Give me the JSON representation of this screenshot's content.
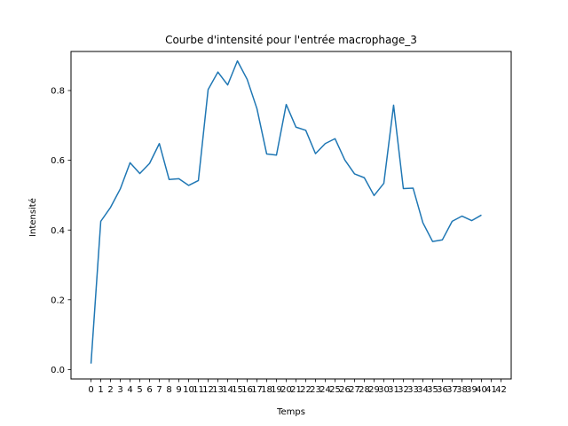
{
  "chart_data": {
    "type": "line",
    "title": "Courbe d'intensité pour l'entrée macrophage_3",
    "xlabel": "Temps",
    "ylabel": "Intensité",
    "xlim": [
      -2.05,
      43.05
    ],
    "ylim": [
      -0.027,
      0.912
    ],
    "xticks": [
      0,
      1,
      2,
      3,
      4,
      5,
      6,
      7,
      8,
      9,
      10,
      11,
      12,
      13,
      14,
      15,
      16,
      17,
      18,
      19,
      20,
      21,
      22,
      23,
      24,
      25,
      26,
      27,
      28,
      29,
      30,
      31,
      32,
      33,
      34,
      35,
      36,
      37,
      38,
      39,
      40,
      41,
      42
    ],
    "xtick_labels": [
      "0",
      "1",
      "2",
      "3",
      "4",
      "5",
      "6",
      "7",
      "8",
      "9",
      "10",
      "11",
      "12",
      "13",
      "14",
      "15",
      "16",
      "17",
      "18",
      "19",
      "20",
      "21",
      "22",
      "23",
      "24",
      "25",
      "26",
      "27",
      "28",
      "29",
      "30",
      "31",
      "32",
      "33",
      "34",
      "35",
      "36",
      "37",
      "38",
      "39",
      "40",
      "41",
      "42"
    ],
    "yticks": [
      0.0,
      0.2,
      0.4,
      0.6,
      0.8
    ],
    "ytick_labels": [
      "0.0",
      "0.2",
      "0.4",
      "0.6",
      "0.8"
    ],
    "grid": false,
    "series": [
      {
        "color": "#1f77b4",
        "x": [
          0,
          1,
          2,
          3,
          4,
          5,
          6,
          7,
          8,
          9,
          10,
          11,
          12,
          13,
          14,
          15,
          16,
          17,
          18,
          19,
          20,
          21,
          22,
          23,
          24,
          25,
          26,
          27,
          28,
          29,
          30,
          31,
          32,
          33,
          34,
          35,
          36,
          37,
          38,
          39,
          40
        ],
        "values": [
          0.017,
          0.425,
          0.465,
          0.518,
          0.593,
          0.562,
          0.591,
          0.648,
          0.545,
          0.547,
          0.528,
          0.542,
          0.803,
          0.853,
          0.816,
          0.885,
          0.832,
          0.748,
          0.618,
          0.615,
          0.76,
          0.695,
          0.686,
          0.619,
          0.648,
          0.662,
          0.601,
          0.561,
          0.55,
          0.499,
          0.534,
          0.758,
          0.519,
          0.52,
          0.421,
          0.367,
          0.372,
          0.425,
          0.44,
          0.427,
          0.443
        ]
      }
    ]
  }
}
